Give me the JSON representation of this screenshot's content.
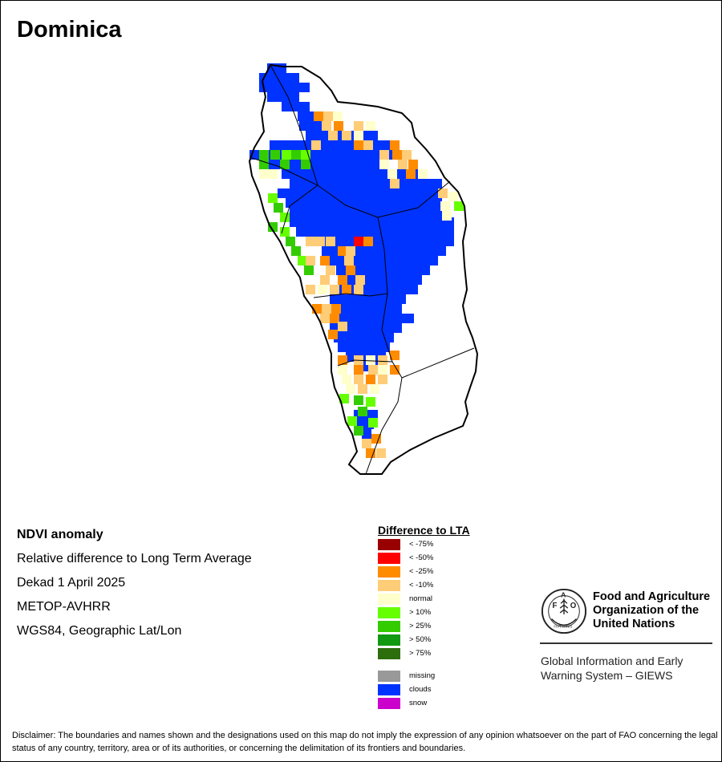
{
  "title": "Dominica",
  "info_lines": [
    "NDVI anomaly",
    "Relative difference to Long Term Average",
    "Dekad 1 April 2025",
    "METOP-AVHRR",
    "WGS84, Geographic Lat/Lon"
  ],
  "legend": {
    "title": "Difference to LTA",
    "items": [
      {
        "label": "< -75%",
        "color": "#990000"
      },
      {
        "label": "< -50%",
        "color": "#ff0000"
      },
      {
        "label": "< -25%",
        "color": "#ff8c00"
      },
      {
        "label": "< -10%",
        "color": "#ffcc77"
      },
      {
        "label": "normal",
        "color": "#ffffcc"
      },
      {
        "label": "> 10%",
        "color": "#66ff00"
      },
      {
        "label": "> 25%",
        "color": "#33cc00"
      },
      {
        "label": "> 50%",
        "color": "#119911"
      },
      {
        "label": "> 75%",
        "color": "#2d6e0c"
      }
    ],
    "extra": [
      {
        "label": "missing",
        "color": "#999999"
      },
      {
        "label": "clouds",
        "color": "#0033ff"
      },
      {
        "label": "snow",
        "color": "#cc00cc"
      }
    ]
  },
  "branding": {
    "org_lines": [
      "Food and Agriculture",
      "Organization of the",
      "United Nations"
    ],
    "logo_letters": [
      "F",
      "A",
      "O"
    ],
    "logo_motto": "FIAT PANIS",
    "system_lines": [
      "Global Information and Early",
      "Warning System – GIEWS"
    ]
  },
  "disclaimer": "Disclaimer: The boundaries and names shown and the designations used on this map do not imply the expression of any opinion whatsoever on the part of FAO concerning the legal status of any country, territory, area or of its authorities, or concerning the delimitation of its frontiers and boundaries."
}
